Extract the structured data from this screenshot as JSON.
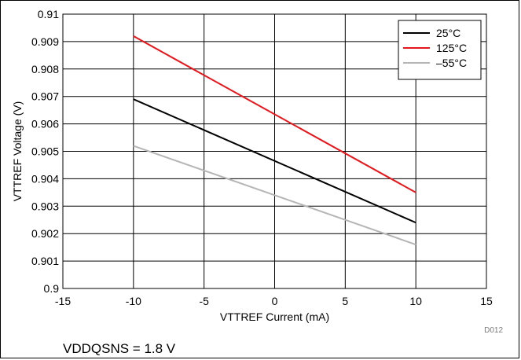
{
  "chart_data": {
    "type": "line",
    "xlabel": "VTTREF Current (mA)",
    "ylabel": "VTTREF Voltage (V)",
    "xlim": [
      -15,
      15
    ],
    "ylim": [
      0.9,
      0.91
    ],
    "x_ticks": [
      "-15",
      "-10",
      "-5",
      "0",
      "5",
      "10",
      "15"
    ],
    "y_ticks": [
      "0.9",
      "0.901",
      "0.902",
      "0.903",
      "0.904",
      "0.905",
      "0.906",
      "0.907",
      "0.908",
      "0.909",
      "0.91"
    ],
    "grid": true,
    "legend_position": "top-right",
    "series": [
      {
        "name": "25°C",
        "color": "#000000",
        "x": [
          -10,
          10
        ],
        "y": [
          0.9069,
          0.9024
        ]
      },
      {
        "name": "125°C",
        "color": "#e8161b",
        "x": [
          -10,
          10
        ],
        "y": [
          0.9092,
          0.9035
        ]
      },
      {
        "name": "–55°C",
        "color": "#b5b5b5",
        "x": [
          -10,
          10
        ],
        "y": [
          0.9052,
          0.9016
        ]
      }
    ],
    "figure_code": "D012"
  },
  "footnote": "VDDQSNS = 1.8 V"
}
